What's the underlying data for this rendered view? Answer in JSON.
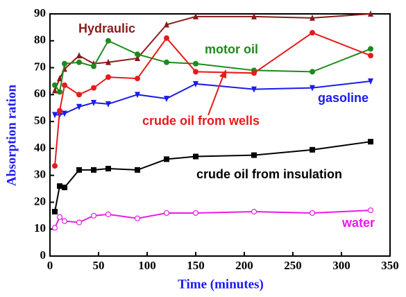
{
  "chart_data": {
    "type": "line",
    "x_label": "Time (minutes)",
    "y_label": "Absorption ration",
    "x": [
      5,
      10,
      15,
      30,
      45,
      60,
      90,
      120,
      150,
      210,
      270,
      330
    ],
    "xlim": [
      0,
      350
    ],
    "xticks": [
      0,
      50,
      100,
      150,
      200,
      250,
      300,
      350
    ],
    "ylim": [
      0,
      90
    ],
    "yticks": [
      0,
      10,
      20,
      30,
      40,
      50,
      60,
      70,
      80,
      90
    ],
    "series": [
      {
        "name": "Hydraulic",
        "color": "#8b1a1a",
        "marker": "triangle-up",
        "values": [
          61.5,
          66,
          69.5,
          74.5,
          71.5,
          72,
          73.5,
          86,
          89,
          89,
          88.5,
          90
        ]
      },
      {
        "name": "motor oil",
        "color": "#1a8c1a",
        "marker": "circle",
        "values": [
          63.5,
          61,
          71.5,
          72,
          70.5,
          80,
          75,
          72,
          71.5,
          69,
          68.5,
          77
        ]
      },
      {
        "name": "gasoline",
        "color": "#1a1aee",
        "marker": "triangle-down",
        "values": [
          52.5,
          52.5,
          53,
          55.5,
          57,
          56.5,
          60,
          58.5,
          64,
          62,
          62.5,
          65
        ]
      },
      {
        "name": "crude oil from wells",
        "color": "#e81a1a",
        "marker": "circle",
        "values": [
          33.5,
          54,
          63.5,
          60,
          62.5,
          66.5,
          66,
          81,
          68.5,
          68,
          83,
          74.5
        ]
      },
      {
        "name": "crude oil from insulation",
        "color": "#000000",
        "marker": "square",
        "values": [
          16.5,
          26,
          25.5,
          32,
          32,
          32.5,
          32,
          36,
          37,
          37.5,
          39.5,
          42.5
        ]
      },
      {
        "name": "water",
        "color": "#e81ae8",
        "marker": "open-circle",
        "values": [
          10.5,
          14.5,
          13,
          12.5,
          15,
          15.5,
          14,
          16,
          16,
          16.5,
          16,
          17
        ]
      }
    ]
  }
}
